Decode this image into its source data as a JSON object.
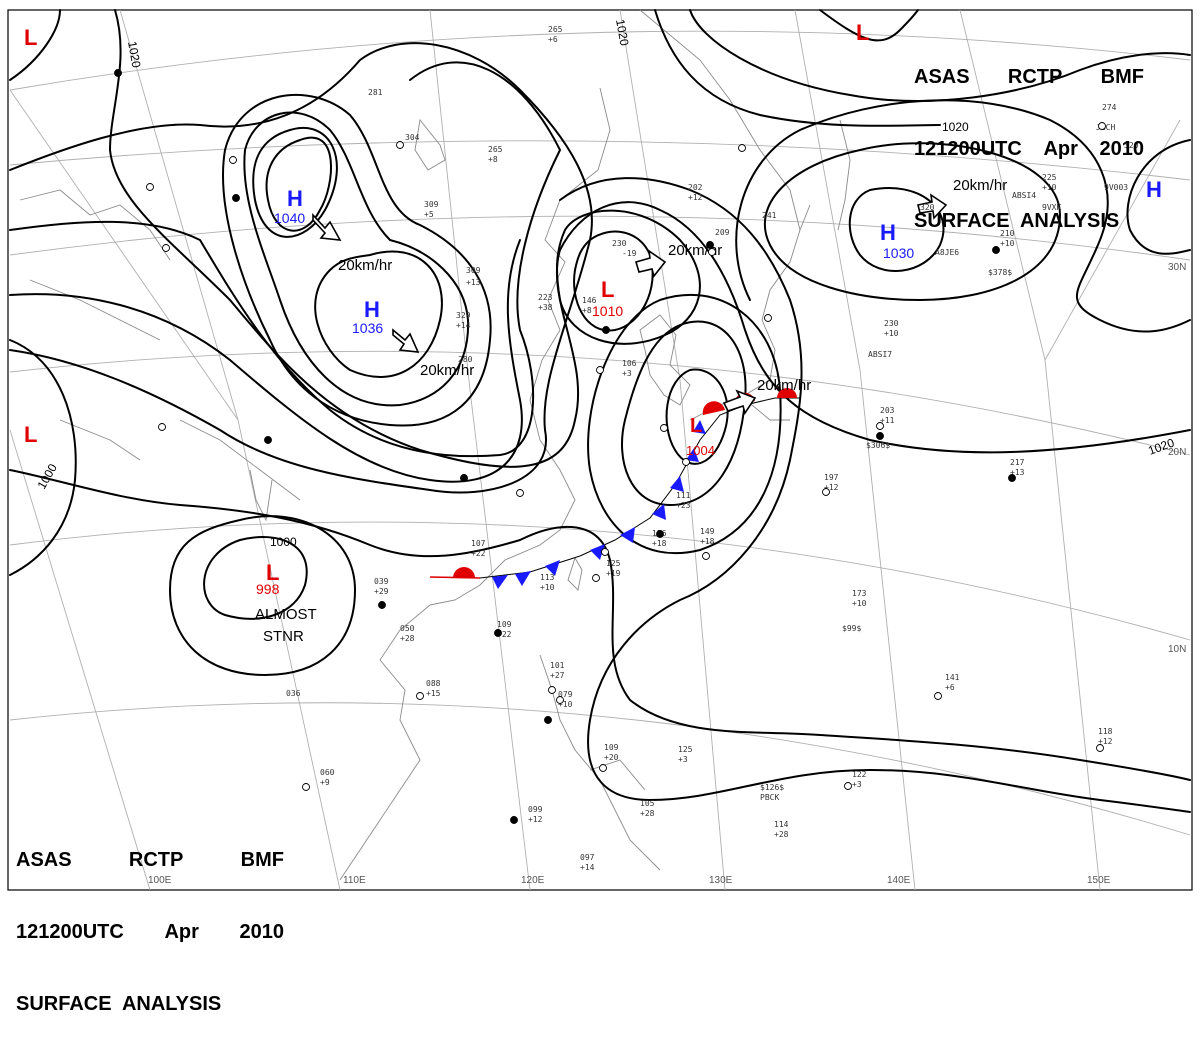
{
  "title": {
    "line1": [
      "ASAS",
      "RCTP",
      "BMF"
    ],
    "line2": [
      "121200UTC",
      "Apr",
      "2010"
    ],
    "line3": "SURFACE  ANALYSIS"
  },
  "pressure_centers": [
    {
      "type": "H",
      "value": "1040",
      "color": "#1a1aff"
    },
    {
      "type": "H",
      "value": "1036",
      "color": "#1a1aff"
    },
    {
      "type": "H",
      "value": "1030",
      "color": "#1a1aff"
    },
    {
      "type": "H",
      "value": "",
      "color": "#1a1aff"
    },
    {
      "type": "L",
      "value": "1010",
      "color": "#e00000"
    },
    {
      "type": "L",
      "value": "1004",
      "color": "#e00000"
    },
    {
      "type": "L",
      "value": "998",
      "color": "#e00000"
    },
    {
      "type": "L",
      "value": "",
      "color": "#e00000"
    },
    {
      "type": "L",
      "value": "",
      "color": "#e00000"
    },
    {
      "type": "L",
      "value": "",
      "color": "#e00000"
    }
  ],
  "isobar_labels": [
    "1020",
    "1020",
    "1020",
    "1020",
    "1000",
    "1000"
  ],
  "motion_labels": [
    "20km/hr",
    "20km/hr",
    "20km/hr",
    "20km/hr",
    "20km/hr"
  ],
  "annotation": {
    "line1": "ALMOST",
    "line2": "STNR"
  },
  "longitude_labels": [
    "100E",
    "110E",
    "120E",
    "130E",
    "140E",
    "150E"
  ],
  "latitude_labels": [
    "30N",
    "20N",
    "10N"
  ],
  "station_samples": [
    "265",
    "+6",
    "281",
    "304",
    "265",
    "+8",
    "309",
    "+5",
    "309",
    "+13",
    "329",
    "+14",
    "280",
    "223",
    "+38",
    "202",
    "+12",
    "209",
    "241",
    "230",
    "-19",
    "146",
    "+8",
    "106",
    "+3",
    "111",
    "+23",
    "149",
    "+18",
    "125",
    "+19",
    "126",
    "+18",
    "107",
    "+22",
    "113",
    "+10",
    "109",
    "+22",
    "039",
    "+29",
    "050",
    "+28",
    "088",
    "+15",
    "036",
    "060",
    "+9",
    "101",
    "+27",
    "079",
    "+10",
    "109",
    "+20",
    "125",
    "+3",
    "099",
    "+12",
    "097",
    "+14",
    "105",
    "+28",
    "122",
    "+3",
    "114",
    "+28",
    "173",
    "+10",
    "141",
    "+6",
    "197",
    "+12",
    "217",
    "+13",
    "203",
    "+11",
    "230",
    "+10",
    "225",
    "+10",
    "274",
    "320",
    "118",
    "+12",
    "210",
    "+10",
    "320",
    "$378$",
    "$306$",
    "$99$",
    "$126$",
    "ABSI7",
    "ABSI4",
    "9VXK",
    "9V003",
    "PBCK",
    "JGCH",
    "A8JE6"
  ],
  "colors": {
    "warm_front": "#e00000",
    "cold_front": "#1a1aff",
    "isobar": "#000000",
    "grid": "#b0b0b0",
    "coast": "#909090"
  }
}
